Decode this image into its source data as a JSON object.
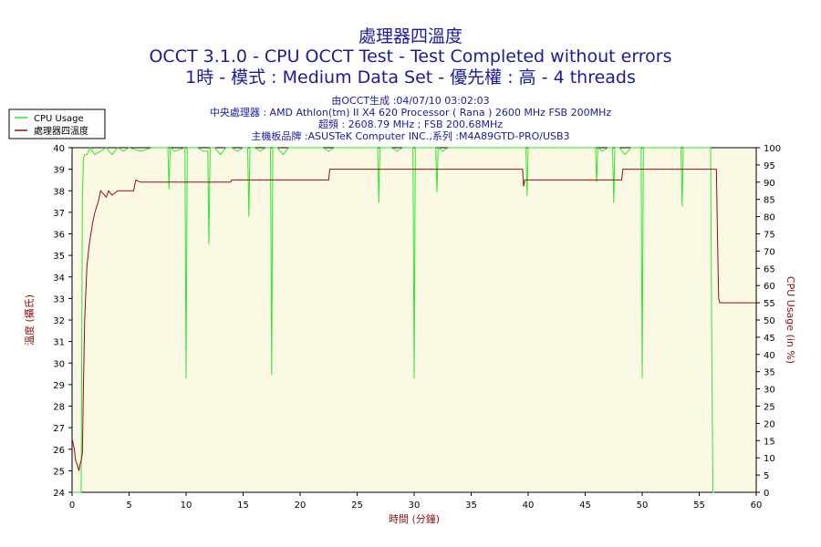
{
  "chart_data": {
    "type": "line",
    "title_lines": [
      "處理器四溫度",
      "OCCT 3.1.0 - CPU OCCT Test - Test Completed without errors",
      "1時 - 模式 : Medium Data Set - 優先權 : 高 - 4 threads"
    ],
    "info_lines": [
      "由OCCT生成 :04/07/10 03:02:03",
      "中央處理器 : AMD Athlon(tm) II X4 620 Processor ( Rana ) 2600 MHz FSB 200MHz",
      "超頻 : 2608.79 MHz ; FSB 200.68MHz",
      "主機板品牌 :ASUSTeK Computer INC.,系列 :M4A89GTD-PRO/USB3"
    ],
    "xlabel": "時間 (分鐘)",
    "ylabel_left": "溫度 (攝氏)",
    "ylabel_right": "CPU Usage (in %)",
    "xlim": [
      0,
      60
    ],
    "ylim_left": [
      24,
      40
    ],
    "ylim_right": [
      0,
      100
    ],
    "x_ticks": [
      0,
      5,
      10,
      15,
      20,
      25,
      30,
      35,
      40,
      45,
      50,
      55,
      60
    ],
    "y_ticks_left": [
      24,
      25,
      26,
      27,
      28,
      29,
      30,
      31,
      32,
      33,
      34,
      35,
      36,
      37,
      38,
      39,
      40
    ],
    "y_ticks_right": [
      0,
      5,
      10,
      15,
      20,
      25,
      30,
      35,
      40,
      45,
      50,
      55,
      60,
      65,
      70,
      75,
      80,
      85,
      90,
      95,
      100
    ],
    "legend_position": "top-left",
    "grid": false,
    "colors": {
      "plot_bg": "#fbf8e4",
      "cpu_usage": "#2ee62e",
      "temperature": "#8b1010",
      "title": "#1a1aa0"
    },
    "series": [
      {
        "name": "CPU Usage",
        "axis": "right",
        "color": "#2ee62e",
        "x": [
          0,
          0.8,
          0.9,
          1.0,
          1.1,
          1.3,
          1.6,
          2.0,
          2.5,
          3.0,
          3.5,
          4.0,
          4.5,
          5.0,
          6.0,
          7.0,
          8.0,
          8.4,
          8.5,
          8.6,
          9.0,
          9.9,
          10.0,
          10.1,
          10.5,
          11.0,
          11.5,
          11.9,
          12.0,
          12.1,
          12.5,
          13.0,
          13.5,
          14.0,
          14.5,
          15.0,
          15.4,
          15.5,
          15.6,
          16.0,
          16.5,
          17.0,
          17.4,
          17.5,
          17.6,
          18.0,
          18.5,
          19.0,
          19.5,
          20.0,
          21.0,
          22.0,
          22.5,
          23.0,
          24.0,
          25.0,
          26.0,
          26.8,
          26.9,
          27.0,
          28.0,
          28.5,
          29.0,
          29.9,
          30.0,
          30.1,
          30.5,
          31.0,
          31.9,
          32.0,
          32.1,
          32.5,
          33.0,
          34.0,
          35.0,
          36.0,
          37.0,
          38.0,
          39.0,
          39.8,
          39.9,
          40.0,
          41.0,
          42.0,
          43.0,
          44.0,
          45.0,
          45.9,
          46.0,
          46.1,
          46.5,
          47.0,
          47.4,
          47.5,
          47.6,
          48.0,
          48.5,
          49.0,
          49.9,
          50.0,
          50.1,
          50.5,
          51.0,
          52.0,
          53.0,
          53.4,
          53.5,
          53.6,
          54.0,
          55.0,
          56.0,
          56.1,
          56.2,
          56.3
        ],
        "values": [
          0,
          0,
          85,
          97,
          98,
          98,
          100,
          98,
          99,
          100,
          98,
          100,
          99,
          100,
          99,
          100,
          100,
          100,
          88,
          100,
          99,
          100,
          33,
          100,
          100,
          100,
          99,
          99,
          72,
          100,
          100,
          98,
          100,
          100,
          99,
          100,
          100,
          80,
          100,
          100,
          99,
          100,
          100,
          34,
          100,
          100,
          98,
          100,
          100,
          100,
          100,
          100,
          99,
          100,
          100,
          100,
          100,
          100,
          84,
          100,
          100,
          99,
          100,
          100,
          33,
          100,
          100,
          100,
          100,
          87,
          100,
          99,
          100,
          100,
          100,
          100,
          100,
          100,
          100,
          100,
          86,
          100,
          100,
          100,
          100,
          100,
          100,
          100,
          90,
          100,
          99,
          100,
          100,
          84,
          100,
          100,
          98,
          100,
          100,
          33,
          100,
          100,
          100,
          100,
          100,
          100,
          83,
          100,
          100,
          100,
          100,
          40,
          0,
          0
        ]
      },
      {
        "name": "處理器四溫度",
        "axis": "left",
        "color": "#8b1010",
        "x": [
          0,
          0.2,
          0.3,
          0.5,
          0.6,
          0.7,
          0.8,
          0.9,
          1.0,
          1.1,
          1.3,
          1.5,
          1.8,
          2.0,
          2.3,
          2.5,
          3.0,
          3.2,
          3.5,
          4.0,
          4.5,
          5.0,
          5.4,
          5.5,
          5.6,
          6.0,
          8.0,
          10.0,
          12.0,
          13.9,
          14.0,
          16.0,
          18.0,
          20.0,
          22.0,
          22.5,
          22.6,
          24.0,
          28.0,
          32.0,
          36.0,
          39.5,
          39.6,
          39.7,
          39.8,
          40.0,
          44.0,
          48.0,
          48.2,
          48.3,
          50.0,
          52.0,
          56.5,
          56.6,
          56.7,
          56.8,
          60.0
        ],
        "values": [
          26.5,
          26.0,
          25.5,
          25.2,
          25.0,
          25.3,
          25.5,
          25.8,
          29.0,
          32.0,
          34.5,
          35.5,
          36.5,
          37.0,
          37.5,
          38.0,
          37.7,
          38.0,
          37.8,
          38.0,
          38.0,
          38.0,
          38.0,
          38.3,
          38.5,
          38.4,
          38.4,
          38.4,
          38.4,
          38.4,
          38.5,
          38.5,
          38.5,
          38.5,
          38.5,
          38.5,
          39.0,
          39.0,
          39.0,
          39.0,
          39.0,
          39.0,
          38.2,
          38.5,
          38.5,
          38.5,
          38.5,
          38.5,
          38.5,
          39.0,
          39.0,
          39.0,
          39.0,
          36.0,
          33.0,
          32.8,
          32.8
        ]
      }
    ]
  }
}
